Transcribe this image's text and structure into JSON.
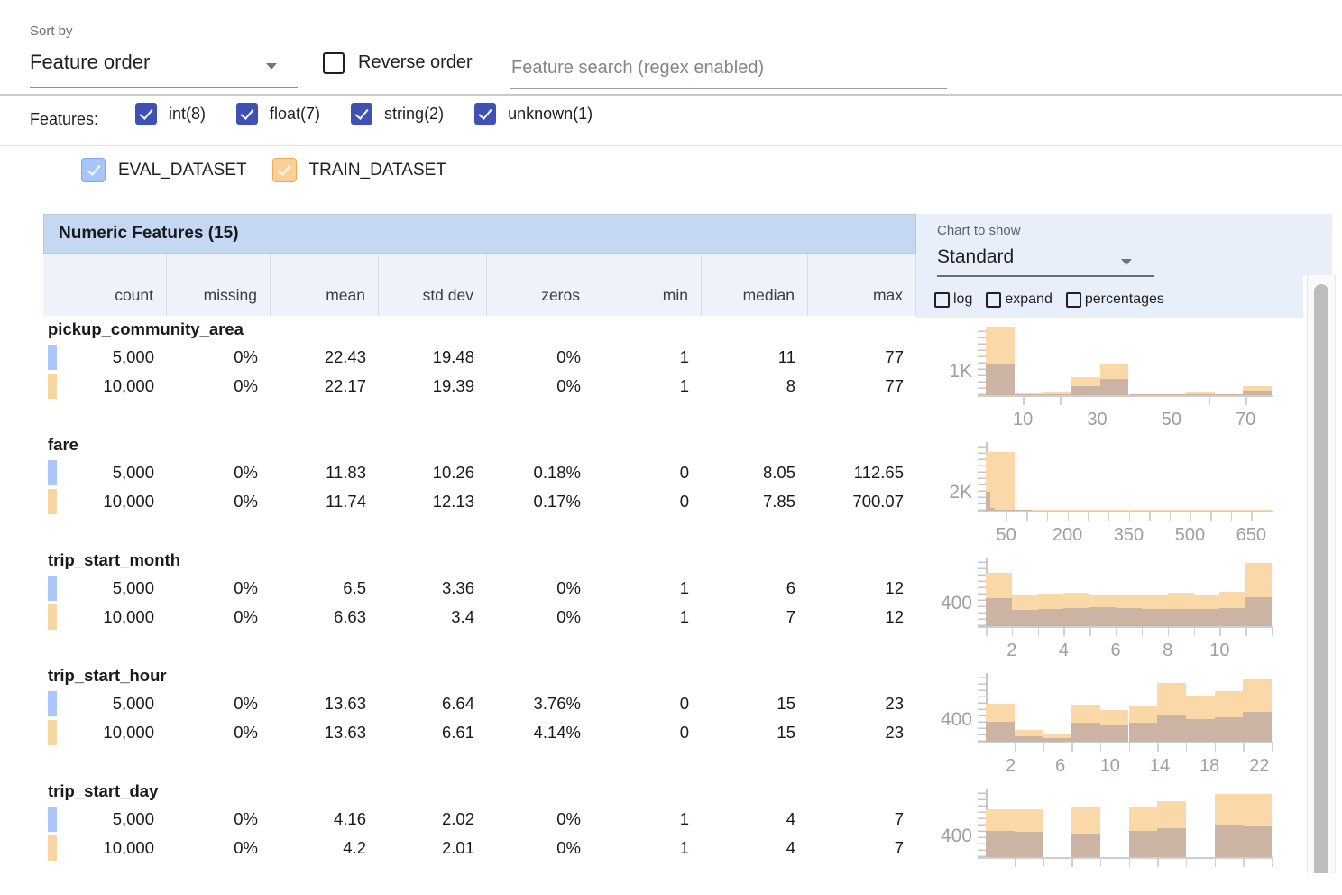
{
  "toolbar": {
    "sort_by_label": "Sort by",
    "sort_by_value": "Feature order",
    "reverse_order_label": "Reverse order",
    "search_placeholder": "Feature search (regex enabled)"
  },
  "filters": {
    "label": "Features:",
    "items": [
      {
        "label": "int(8)",
        "checked": true
      },
      {
        "label": "float(7)",
        "checked": true
      },
      {
        "label": "string(2)",
        "checked": true
      },
      {
        "label": "unknown(1)",
        "checked": true
      }
    ]
  },
  "legend": {
    "datasets": [
      {
        "name": "EVAL_DATASET",
        "fill": "#a6c5f9",
        "border": "#7ea8f6"
      },
      {
        "name": "TRAIN_DATASET",
        "fill": "#fbd096",
        "border": "#efab56"
      }
    ]
  },
  "table": {
    "title": "Numeric Features (15)",
    "columns": [
      "count",
      "missing",
      "mean",
      "std dev",
      "zeros",
      "min",
      "median",
      "max"
    ],
    "rows": [
      {
        "feature": "pickup_community_area",
        "eval": [
          "5,000",
          "0%",
          "22.43",
          "19.48",
          "0%",
          "1",
          "11",
          "77"
        ],
        "train": [
          "10,000",
          "0%",
          "22.17",
          "19.39",
          "0%",
          "1",
          "8",
          "77"
        ]
      },
      {
        "feature": "fare",
        "eval": [
          "5,000",
          "0%",
          "11.83",
          "10.26",
          "0.18%",
          "0",
          "8.05",
          "112.65"
        ],
        "train": [
          "10,000",
          "0%",
          "11.74",
          "12.13",
          "0.17%",
          "0",
          "7.85",
          "700.07"
        ]
      },
      {
        "feature": "trip_start_month",
        "eval": [
          "5,000",
          "0%",
          "6.5",
          "3.36",
          "0%",
          "1",
          "6",
          "12"
        ],
        "train": [
          "10,000",
          "0%",
          "6.63",
          "3.4",
          "0%",
          "1",
          "7",
          "12"
        ]
      },
      {
        "feature": "trip_start_hour",
        "eval": [
          "5,000",
          "0%",
          "13.63",
          "6.64",
          "3.76%",
          "0",
          "15",
          "23"
        ],
        "train": [
          "10,000",
          "0%",
          "13.63",
          "6.61",
          "4.14%",
          "0",
          "15",
          "23"
        ]
      },
      {
        "feature": "trip_start_day",
        "eval": [
          "5,000",
          "0%",
          "4.16",
          "2.02",
          "0%",
          "1",
          "4",
          "7"
        ],
        "train": [
          "10,000",
          "0%",
          "4.2",
          "2.01",
          "0%",
          "1",
          "4",
          "7"
        ]
      }
    ]
  },
  "chart_controls": {
    "label": "Chart to show",
    "selected": "Standard",
    "options": [
      {
        "label": "log",
        "checked": false
      },
      {
        "label": "expand",
        "checked": false
      },
      {
        "label": "percentages",
        "checked": false
      }
    ]
  },
  "chart_data": [
    {
      "type": "bar",
      "feature": "pickup_community_area",
      "y_axis_label": "1K",
      "y_label_value": 1000,
      "y_max": 3000,
      "domain": [
        0,
        77
      ],
      "series": [
        {
          "name": "TRAIN_DATASET",
          "color_key": "train_bar",
          "start": 0,
          "bin_width": 7.7,
          "values": [
            3000,
            60,
            100,
            780,
            1400,
            45,
            45,
            105,
            30,
            390
          ]
        },
        {
          "name": "EVAL_DATASET",
          "color_key": "overlap_bar",
          "start": 0,
          "bin_width": 7.7,
          "values": [
            1400,
            30,
            45,
            390,
            720,
            15,
            15,
            30,
            15,
            210
          ]
        }
      ],
      "x_tick_labels": [
        {
          "v": 10,
          "label": "10"
        },
        {
          "v": 30,
          "label": "30"
        },
        {
          "v": 50,
          "label": "50"
        },
        {
          "v": 70,
          "label": "70"
        }
      ],
      "minor_ticks": [
        10,
        20,
        30,
        40,
        50,
        60,
        70
      ]
    },
    {
      "type": "bar",
      "feature": "fare",
      "y_axis_label": "2K",
      "y_label_value": 2000,
      "y_max": 8000,
      "domain": [
        0,
        700
      ],
      "series": [
        {
          "name": "TRAIN_DATASET",
          "color_key": "train_bar",
          "start": 0,
          "bin_width": 70,
          "values": [
            6800,
            40,
            15,
            8,
            5,
            3,
            2,
            1,
            1,
            1
          ]
        },
        {
          "name": "EVAL_DATASET",
          "color_key": "overlap_bar",
          "start": 0,
          "bin_width": 11.3,
          "values": [
            2200,
            350,
            120,
            60,
            30,
            15,
            8,
            4,
            2,
            1
          ]
        }
      ],
      "x_tick_labels": [
        {
          "v": 50,
          "label": "50"
        },
        {
          "v": 200,
          "label": "200"
        },
        {
          "v": 350,
          "label": "350"
        },
        {
          "v": 500,
          "label": "500"
        },
        {
          "v": 650,
          "label": "650"
        }
      ],
      "minor_ticks": [
        50,
        100,
        150,
        200,
        250,
        300,
        350,
        400,
        450,
        500,
        550,
        600,
        650
      ]
    },
    {
      "type": "bar",
      "feature": "trip_start_month",
      "y_axis_label": "400",
      "y_label_value": 400,
      "y_max": 1270,
      "domain": [
        1,
        12
      ],
      "series": [
        {
          "name": "TRAIN_DATASET",
          "color_key": "train_bar",
          "start": 1,
          "bin_width": 1,
          "values": [
            990,
            560,
            595,
            610,
            585,
            585,
            585,
            620,
            560,
            635,
            1170
          ]
        },
        {
          "name": "EVAL_DATASET",
          "color_key": "overlap_bar",
          "start": 1,
          "bin_width": 1,
          "values": [
            510,
            305,
            320,
            330,
            345,
            330,
            320,
            320,
            320,
            330,
            535
          ]
        }
      ],
      "x_tick_labels": [
        {
          "v": 2,
          "label": "2"
        },
        {
          "v": 4,
          "label": "4"
        },
        {
          "v": 6,
          "label": "6"
        },
        {
          "v": 8,
          "label": "8"
        },
        {
          "v": 10,
          "label": "10"
        }
      ],
      "minor_ticks": [
        1,
        2,
        3,
        4,
        5,
        6,
        7,
        8,
        9,
        10,
        11,
        12
      ]
    },
    {
      "type": "bar",
      "feature": "trip_start_hour",
      "y_axis_label": "400",
      "y_label_value": 400,
      "y_max": 1330,
      "domain": [
        0,
        23
      ],
      "series": [
        {
          "name": "TRAIN_DATASET",
          "color_key": "train_bar",
          "start": 0,
          "bin_width": 2.3,
          "values": [
            730,
            225,
            135,
            720,
            610,
            690,
            1145,
            890,
            985,
            1210
          ]
        },
        {
          "name": "EVAL_DATASET",
          "color_key": "overlap_bar",
          "start": 0,
          "bin_width": 2.3,
          "values": [
            385,
            105,
            65,
            370,
            320,
            360,
            530,
            440,
            480,
            585
          ]
        }
      ],
      "x_tick_labels": [
        {
          "v": 2,
          "label": "2"
        },
        {
          "v": 6,
          "label": "6"
        },
        {
          "v": 10,
          "label": "10"
        },
        {
          "v": 14,
          "label": "14"
        },
        {
          "v": 18,
          "label": "18"
        },
        {
          "v": 22,
          "label": "22"
        }
      ],
      "minor_ticks": [
        2.3,
        4.6,
        6.9,
        9.2,
        11.5,
        13.8,
        16.1,
        18.4,
        20.7,
        23
      ]
    },
    {
      "type": "bar",
      "feature": "trip_start_day",
      "y_axis_label": "400",
      "y_label_value": 400,
      "y_max": 1370,
      "domain": [
        1,
        7
      ],
      "series": [
        {
          "name": "TRAIN_DATASET",
          "color_key": "train_bar",
          "start": 1,
          "bin_width": 0.6,
          "values": [
            960,
            960,
            0,
            990,
            0,
            1010,
            1120,
            0,
            1270,
            1260
          ]
        },
        {
          "name": "EVAL_DATASET",
          "color_key": "overlap_bar",
          "start": 1,
          "bin_width": 0.6,
          "values": [
            520,
            505,
            0,
            465,
            0,
            520,
            575,
            0,
            645,
            615
          ]
        }
      ],
      "x_tick_labels": [],
      "minor_ticks": [
        1.6,
        2.2,
        2.8,
        3.4,
        4.0,
        4.6,
        5.2,
        5.8,
        6.4,
        7.0
      ]
    }
  ],
  "colors": {
    "accent": "#3f51b5",
    "train_bar": "#fad8a8",
    "overlap_bar": "#cbb4a3",
    "eval_swatch": "#abc7f9",
    "train_swatch": "#f9d5a2",
    "band": "#c5d8f2",
    "subheader": "#eef2f9",
    "panel": "#e8effb"
  }
}
